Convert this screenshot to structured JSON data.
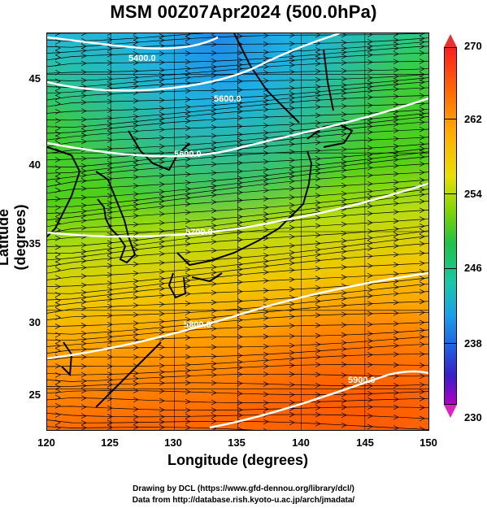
{
  "title": "MSM 00Z07Apr2024 (500.0hPa)",
  "xlabel": "Longitude (degrees)",
  "ylabel": "Latitude  (degrees)",
  "xticks": [
    "120",
    "125",
    "130",
    "135",
    "140",
    "145",
    "150"
  ],
  "yticks": [
    "45",
    "40",
    "35",
    "30",
    "25"
  ],
  "colorbar_ticks": [
    "270",
    "262",
    "254",
    "246",
    "238",
    "230"
  ],
  "contour_labels": [
    "5400.0",
    "5600.0",
    "5600.0",
    "5700.0",
    "5800.0",
    "5900.0"
  ],
  "credits": {
    "line1": "Drawing by DCL (https://www.gfd-dennou.org/library/dcl/)",
    "line2": "Data from http://database.rish.kyoto-u.ac.jp/arch/jmadata/"
  },
  "chart_data": {
    "type": "heatmap",
    "title": "MSM 00Z07Apr2024 (500.0hPa)",
    "xlabel": "Longitude (degrees)",
    "ylabel": "Latitude  (degrees)",
    "xlim": [
      120,
      150
    ],
    "ylim": [
      22.4,
      47.6
    ],
    "colorbar_range": [
      230,
      270
    ],
    "colors": {
      "warm": "#ff7a00",
      "mid": "#33cc33",
      "cold": "#19b8e6"
    }
  }
}
